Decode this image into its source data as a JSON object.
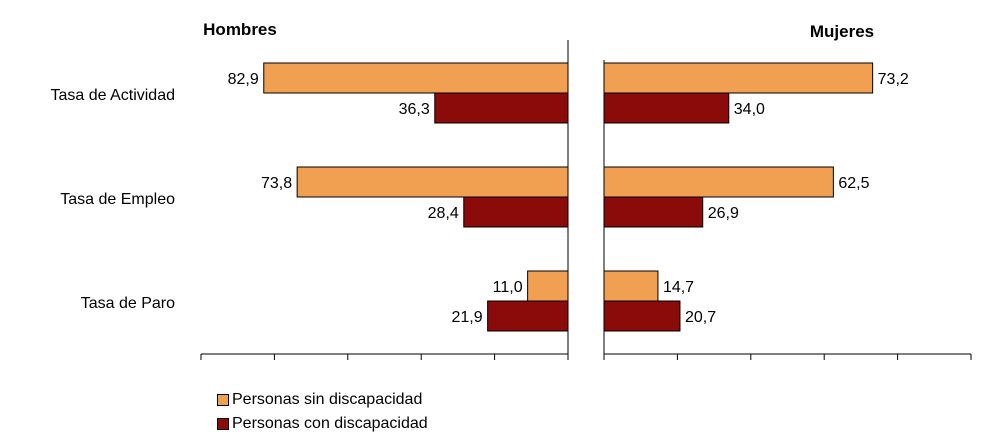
{
  "chart_data": {
    "type": "bar",
    "orientation": "horizontal",
    "categories": [
      "Tasa de Actividad",
      "Tasa de Empleo",
      "Tasa de Paro"
    ],
    "panels": [
      {
        "title": "Hombres",
        "direction": "left",
        "series": [
          {
            "name": "Personas sin discapacidad",
            "values": [
              82.9,
              73.8,
              11.0
            ],
            "labels": [
              "82,9",
              "73,8",
              "11,0"
            ]
          },
          {
            "name": "Personas con discapacidad",
            "values": [
              36.3,
              28.4,
              21.9
            ],
            "labels": [
              "36,3",
              "28,4",
              "21,9"
            ]
          }
        ]
      },
      {
        "title": "Mujeres",
        "direction": "right",
        "series": [
          {
            "name": "Personas sin discapacidad",
            "values": [
              73.2,
              62.5,
              14.7
            ],
            "labels": [
              "73,2",
              "62,5",
              "14,7"
            ]
          },
          {
            "name": "Personas con discapacidad",
            "values": [
              34.0,
              26.9,
              20.7
            ],
            "labels": [
              "34,0",
              "26,9",
              "20,7"
            ]
          }
        ]
      }
    ],
    "xlim": [
      0,
      100
    ],
    "grid": false,
    "legend_position": "bottom-left",
    "series_colors": [
      "#F0A050",
      "#8B0A0A"
    ]
  },
  "legend": {
    "items": [
      {
        "label": "Personas sin discapacidad",
        "color": "#F0A050"
      },
      {
        "label": "Personas con discapacidad",
        "color": "#8B0A0A"
      }
    ]
  }
}
